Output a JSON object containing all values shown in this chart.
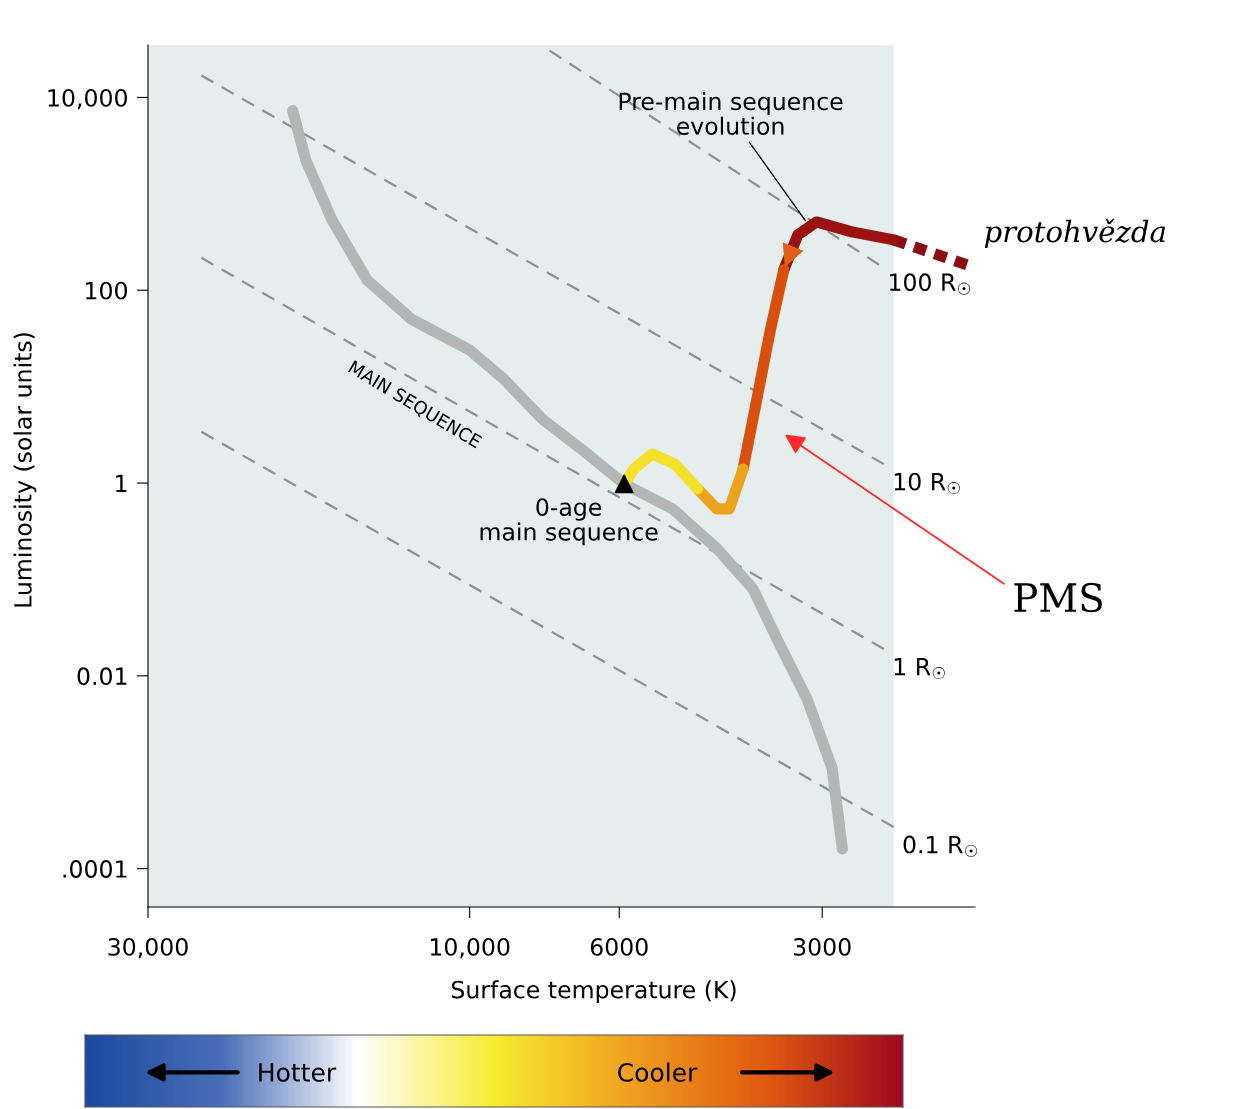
{
  "chart_data": {
    "type": "line",
    "xlabel": "Surface temperature (K)",
    "ylabel": "Luminosity (solar units)",
    "log": "xy",
    "xlim": [
      30000,
      1780
    ],
    "ylim": [
      4e-05,
      35000
    ],
    "xticks": [
      {
        "value": 30000,
        "label": "30,000"
      },
      {
        "value": 10000,
        "label": "10,000"
      },
      6000,
      3000
    ],
    "yticks": [
      {
        "value": 0.0001,
        "label": ".0001"
      },
      0.01,
      1,
      100,
      {
        "value": 10000,
        "label": "10,000"
      }
    ],
    "grid": false,
    "legend": false,
    "series": [
      {
        "name": "100 R$_{☉}$",
        "color": "#8c9090",
        "line_style": "dashed",
        "x": [
          7610,
          2470
        ],
        "values": [
          30600,
          184
        ]
      },
      {
        "name": "10 R$_{☉}$",
        "color": "#8c9090",
        "line_style": "dashed",
        "x": [
          25000,
          2430
        ],
        "values": [
          16900,
          1.57
        ]
      },
      {
        "name": "1 R$_{☉}$",
        "color": "#8c9090",
        "line_style": "dashed",
        "x": [
          25000,
          2430
        ],
        "values": [
          217,
          0.019
        ]
      },
      {
        "name": "0.1 R$_{☉}$",
        "color": "#8c9090",
        "line_style": "dashed",
        "x": [
          25000,
          2350
        ],
        "values": [
          3.4,
          0.00027
        ]
      },
      {
        "color": "#b4b6b6",
        "line_style": "solid",
        "x": [
          18300,
          17500,
          16000,
          14200,
          12200,
          10000,
          8900,
          7800,
          6800,
          5900,
          5000,
          4300,
          3800,
          3500,
          3160,
          2900,
          2800
        ],
        "values": [
          7300,
          2230,
          536,
          128,
          50,
          24,
          12,
          4.6,
          2.2,
          0.98,
          0.54,
          0.21,
          0.08,
          0.024,
          0.0058,
          0.0011,
          0.00016
        ]
      },
      {
        "color": "#8b0d14",
        "line_style": "dashed",
        "x": [
          1830,
          2350
        ],
        "values": [
          184,
          333
        ]
      },
      {
        "color": "#9a1212",
        "line_style": "solid",
        "x": [
          2350,
          2710,
          3060,
          3260,
          3420
        ],
        "values": [
          333,
          403,
          511,
          375,
          163
        ]
      },
      {
        "color": "#d8500e",
        "line_style": "solid",
        "x": [
          3420,
          3580,
          3750,
          3930
        ],
        "values": [
          163,
          39,
          7.4,
          1.4
        ]
      },
      {
        "color": "#eda21c",
        "line_style": "solid",
        "x": [
          3930,
          4120,
          4300,
          4590
        ],
        "values": [
          1.4,
          0.54,
          0.54,
          0.87
        ]
      },
      {
        "color": "#f5e02a",
        "line_style": "solid",
        "x": [
          4590,
          4960,
          5360,
          5710,
          5900
        ],
        "values": [
          0.87,
          1.57,
          2.0,
          1.4,
          0.98
        ]
      },
      {
        "type": "scatter",
        "marker": "triangle",
        "color": "#000000",
        "x": [
          5900
        ],
        "values": [
          0.98
        ]
      }
    ],
    "annotations": [
      {
        "text": "Pre-main sequence\nevolution",
        "x": 3160,
        "y": 500
      },
      {
        "text": "0-age\nmain sequence",
        "x": 5900,
        "y": 0.98
      },
      {
        "text": "protohvězda",
        "x": 1830,
        "y": 184
      },
      "PMS",
      "MAIN SEQUENCE",
      "Hotter",
      "Cooler"
    ]
  }
}
